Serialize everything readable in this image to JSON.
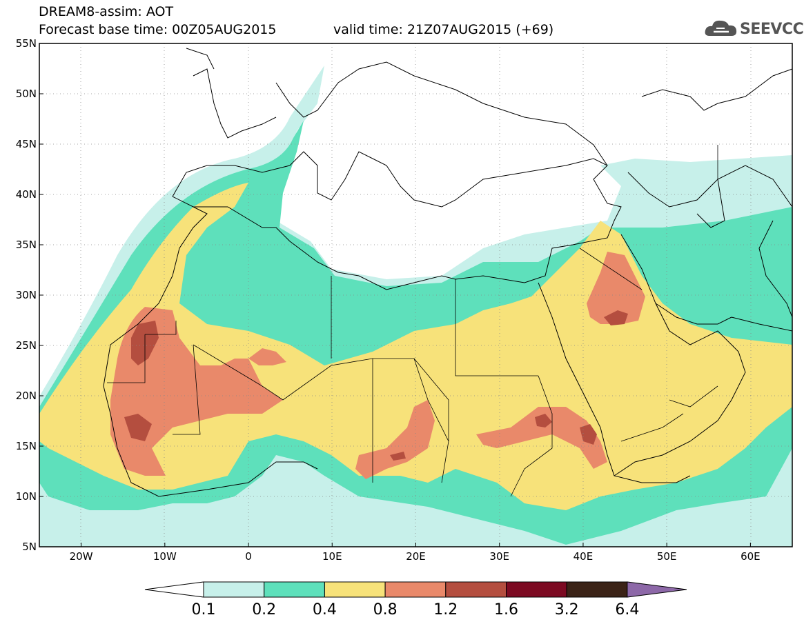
{
  "header": {
    "line1": "DREAM8-assim: AOT",
    "line2": "Forecast base time: 00Z05AUG2015",
    "line3": "valid time: 21Z07AUG2015 (+69)",
    "logo_text": "SEEVCCC"
  },
  "map": {
    "lon_range": [
      -25,
      65
    ],
    "lat_range": [
      5,
      55
    ],
    "lat_ticks": [
      "55N",
      "50N",
      "45N",
      "40N",
      "35N",
      "30N",
      "25N",
      "20N",
      "15N",
      "10N",
      "5N"
    ],
    "lon_ticks": [
      "20W",
      "10W",
      "0",
      "10E",
      "20E",
      "30E",
      "40E",
      "50E",
      "60E"
    ],
    "grid": "dotted"
  },
  "colorbar": {
    "labels": [
      "0.1",
      "0.2",
      "0.4",
      "0.8",
      "1.2",
      "1.6",
      "3.2",
      "6.4"
    ],
    "colors": [
      "#ffffff",
      "#c7f0ea",
      "#5ee0bb",
      "#f7e27a",
      "#e9896a",
      "#b44e3f",
      "#7c0a22",
      "#3b2317",
      "#8d68a8"
    ]
  }
}
